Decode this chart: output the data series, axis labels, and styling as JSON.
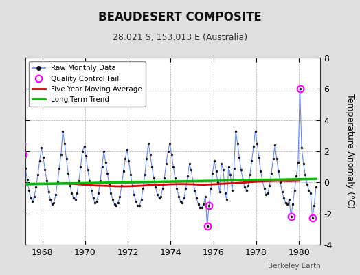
{
  "title": "BEAUDESERT COMPOSITE",
  "subtitle": "28.021 S, 153.013 E (Australia)",
  "ylabel": "Temperature Anomaly (°C)",
  "credit": "Berkeley Earth",
  "xlim": [
    1967.2,
    1981.0
  ],
  "ylim": [
    -4,
    8
  ],
  "yticks": [
    -4,
    -2,
    0,
    2,
    4,
    6,
    8
  ],
  "xticks": [
    1968,
    1970,
    1972,
    1974,
    1976,
    1978,
    1980
  ],
  "bg_color": "#e0e0e0",
  "plot_bg_color": "#ffffff",
  "raw_color": "#6688ff",
  "dot_color": "#111111",
  "ma_color": "#dd0000",
  "trend_color": "#00bb00",
  "qc_color": "#ff00ff",
  "raw_monthly_data": [
    1967.042,
    2.5,
    1967.125,
    1.8,
    1967.208,
    0.9,
    1967.292,
    0.2,
    1967.375,
    -0.5,
    1967.458,
    -1.0,
    1967.542,
    -1.2,
    1967.625,
    -0.9,
    1967.708,
    -0.3,
    1967.792,
    0.5,
    1967.875,
    1.4,
    1967.958,
    2.2,
    1968.042,
    1.6,
    1968.125,
    0.8,
    1968.208,
    0.1,
    1968.292,
    -0.6,
    1968.375,
    -1.1,
    1968.458,
    -1.4,
    1968.542,
    -1.3,
    1968.625,
    -0.8,
    1968.708,
    0.0,
    1968.792,
    0.9,
    1968.875,
    1.8,
    1968.958,
    3.3,
    1969.042,
    2.5,
    1969.125,
    1.5,
    1969.208,
    0.6,
    1969.292,
    -0.2,
    1969.375,
    -0.7,
    1969.458,
    -1.0,
    1969.542,
    -1.1,
    1969.625,
    -0.7,
    1969.708,
    0.1,
    1969.792,
    1.0,
    1969.875,
    2.0,
    1969.958,
    2.3,
    1970.042,
    1.7,
    1970.125,
    0.8,
    1970.208,
    0.1,
    1970.292,
    -0.5,
    1970.375,
    -1.0,
    1970.458,
    -1.3,
    1970.542,
    -1.2,
    1970.625,
    -0.7,
    1970.708,
    0.1,
    1970.792,
    1.0,
    1970.875,
    2.0,
    1970.958,
    1.3,
    1971.042,
    0.6,
    1971.125,
    -0.1,
    1971.208,
    -0.7,
    1971.292,
    -1.1,
    1971.375,
    -1.4,
    1971.458,
    -1.5,
    1971.542,
    -1.3,
    1971.625,
    -0.9,
    1971.708,
    -0.2,
    1971.792,
    0.7,
    1971.875,
    1.5,
    1971.958,
    2.1,
    1972.042,
    1.4,
    1972.125,
    0.5,
    1972.208,
    -0.2,
    1972.292,
    -0.8,
    1972.375,
    -1.2,
    1972.458,
    -1.5,
    1972.542,
    -1.5,
    1972.625,
    -1.1,
    1972.708,
    -0.4,
    1972.792,
    0.5,
    1972.875,
    1.5,
    1972.958,
    2.5,
    1973.042,
    1.8,
    1973.125,
    1.0,
    1973.208,
    0.3,
    1973.292,
    -0.3,
    1973.375,
    -0.8,
    1973.458,
    -1.0,
    1973.542,
    -0.9,
    1973.625,
    -0.4,
    1973.708,
    0.3,
    1973.792,
    1.2,
    1973.875,
    2.0,
    1973.958,
    2.5,
    1974.042,
    1.8,
    1974.125,
    1.0,
    1974.208,
    0.3,
    1974.292,
    -0.4,
    1974.375,
    -0.9,
    1974.458,
    -1.2,
    1974.542,
    -1.3,
    1974.625,
    -1.0,
    1974.708,
    -0.4,
    1974.792,
    0.4,
    1974.875,
    1.2,
    1974.958,
    0.8,
    1975.042,
    0.1,
    1975.125,
    -0.5,
    1975.208,
    -1.0,
    1975.292,
    -1.4,
    1975.375,
    -1.6,
    1975.458,
    -1.6,
    1975.542,
    -1.4,
    1975.625,
    -0.9,
    1975.708,
    -2.8,
    1975.792,
    -1.5,
    1975.875,
    -0.4,
    1975.958,
    0.6,
    1976.042,
    1.4,
    1976.125,
    0.7,
    1976.208,
    0.0,
    1976.292,
    -0.6,
    1976.375,
    1.2,
    1976.458,
    0.8,
    1976.542,
    -0.7,
    1976.625,
    -1.1,
    1976.708,
    1.0,
    1976.792,
    0.5,
    1976.875,
    -0.5,
    1976.958,
    0.9,
    1977.042,
    3.3,
    1977.125,
    2.5,
    1977.208,
    1.6,
    1977.292,
    0.8,
    1977.375,
    0.2,
    1977.458,
    -0.3,
    1977.542,
    -0.5,
    1977.625,
    -0.2,
    1977.708,
    0.5,
    1977.792,
    1.4,
    1977.875,
    2.3,
    1977.958,
    3.3,
    1978.042,
    2.5,
    1978.125,
    1.6,
    1978.208,
    0.7,
    1978.292,
    0.1,
    1978.375,
    -0.4,
    1978.458,
    -0.8,
    1978.542,
    -0.7,
    1978.625,
    -0.2,
    1978.708,
    0.6,
    1978.792,
    1.5,
    1978.875,
    2.4,
    1978.958,
    1.5,
    1979.042,
    0.7,
    1979.125,
    0.0,
    1979.208,
    -0.6,
    1979.292,
    -1.0,
    1979.375,
    -1.3,
    1979.458,
    -1.4,
    1979.542,
    -1.1,
    1979.625,
    -2.2,
    1979.708,
    -1.4,
    1979.792,
    -0.5,
    1979.875,
    0.4,
    1979.958,
    1.3,
    1980.042,
    6.0,
    1980.125,
    2.2,
    1980.208,
    1.2,
    1980.292,
    0.5,
    1980.375,
    -0.1,
    1980.458,
    -0.5,
    1980.542,
    -0.7,
    1980.625,
    -2.3,
    1980.708,
    -1.5,
    1980.792,
    -0.3
  ],
  "qc_fail_points": [
    [
      1967.042,
      2.5
    ],
    [
      1967.125,
      1.8
    ],
    [
      1975.708,
      -2.8
    ],
    [
      1975.792,
      -1.5
    ],
    [
      1979.625,
      -2.2
    ],
    [
      1980.042,
      6.0
    ],
    [
      1980.625,
      -2.3
    ]
  ],
  "moving_avg": [
    [
      1969.0,
      -0.05
    ],
    [
      1969.5,
      -0.1
    ],
    [
      1970.0,
      -0.15
    ],
    [
      1970.5,
      -0.2
    ],
    [
      1971.0,
      -0.22
    ],
    [
      1971.5,
      -0.25
    ],
    [
      1972.0,
      -0.25
    ],
    [
      1972.5,
      -0.22
    ],
    [
      1973.0,
      -0.18
    ],
    [
      1973.5,
      -0.15
    ],
    [
      1974.0,
      -0.12
    ],
    [
      1974.5,
      -0.1
    ],
    [
      1975.0,
      -0.12
    ],
    [
      1975.5,
      -0.15
    ],
    [
      1976.0,
      -0.12
    ],
    [
      1976.5,
      -0.08
    ],
    [
      1977.0,
      -0.05
    ],
    [
      1977.5,
      0.0
    ],
    [
      1978.0,
      0.05
    ],
    [
      1978.5,
      0.08
    ],
    [
      1979.0,
      0.1
    ],
    [
      1979.5,
      0.08
    ],
    [
      1980.0,
      0.1
    ]
  ],
  "trend_x": [
    1967.042,
    1980.792
  ],
  "trend_y": [
    -0.12,
    0.22
  ]
}
